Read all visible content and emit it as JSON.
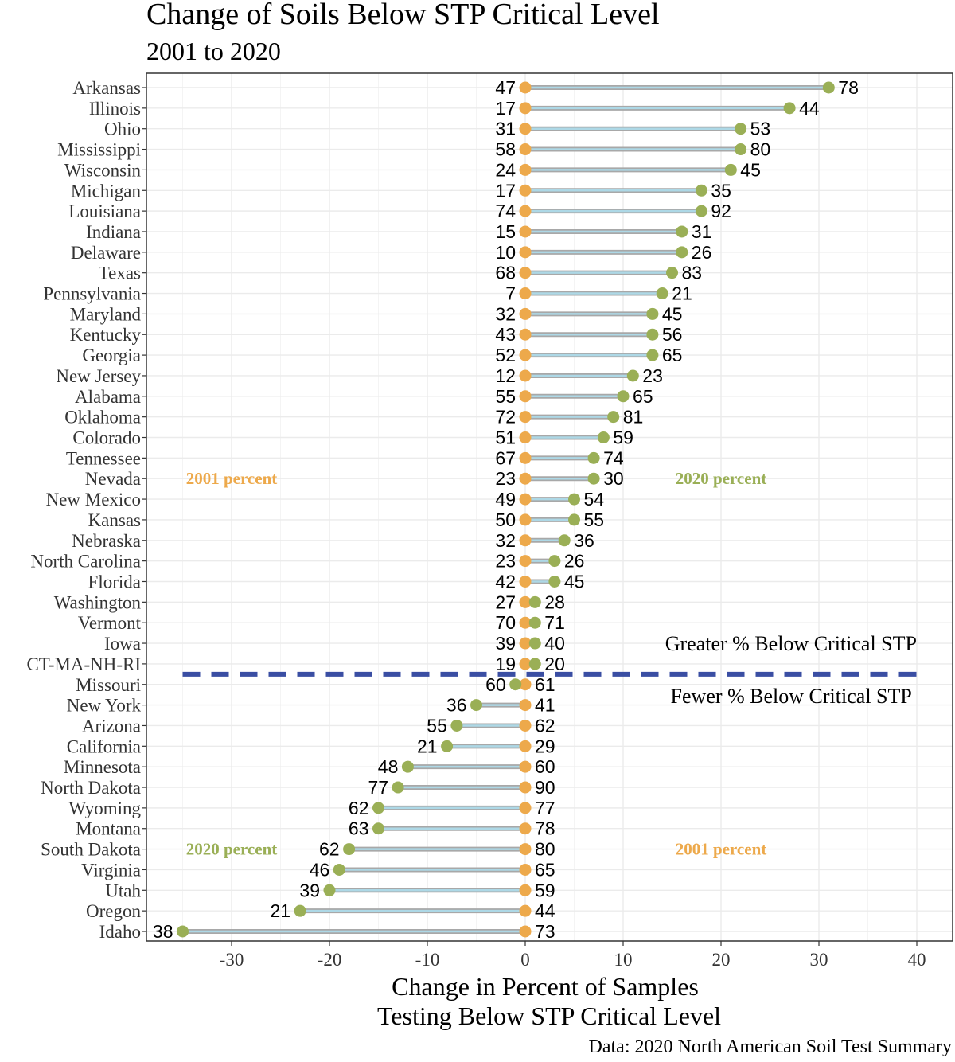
{
  "chart_data": {
    "type": "dumbbell",
    "title": "Change of Soils Below STP Critical Level",
    "subtitle": "2001 to 2020",
    "xlabel_lines": [
      "Change in Percent of Samples",
      "Testing Below STP Critical Level"
    ],
    "ylabel": "",
    "caption": "Data: 2020 North American Soil Test Summary",
    "xlim": [
      -38,
      43
    ],
    "xticks": [
      -30,
      -20,
      -10,
      0,
      10,
      20,
      30,
      40
    ],
    "grid": true,
    "colors": {
      "p2001": "#eda94b",
      "p2020": "#9aaf56",
      "segment_outer": "#a8a8a8",
      "segment_inner": "#add8e6",
      "divider": "#3a4ea3"
    },
    "annotations": {
      "top_left": {
        "text": "2001 percent",
        "color": "#eda94b",
        "x": -30
      },
      "top_right": {
        "text": "2020 percent",
        "color": "#9aaf56",
        "x": 20
      },
      "bottom_left": {
        "text": "2020 percent",
        "color": "#9aaf56",
        "x": -30
      },
      "bottom_right": {
        "text": "2001 percent",
        "color": "#eda94b",
        "x": 20
      },
      "greater": "Greater % Below Critical STP",
      "fewer": "Fewer % Below Critical STP"
    },
    "series_names": [
      "2001 percent",
      "2020 percent"
    ],
    "rows": [
      {
        "state": "Arkansas",
        "p2001": 47,
        "p2020": 78
      },
      {
        "state": "Illinois",
        "p2001": 17,
        "p2020": 44
      },
      {
        "state": "Ohio",
        "p2001": 31,
        "p2020": 53
      },
      {
        "state": "Mississippi",
        "p2001": 58,
        "p2020": 80
      },
      {
        "state": "Wisconsin",
        "p2001": 24,
        "p2020": 45
      },
      {
        "state": "Michigan",
        "p2001": 17,
        "p2020": 35
      },
      {
        "state": "Louisiana",
        "p2001": 74,
        "p2020": 92
      },
      {
        "state": "Indiana",
        "p2001": 15,
        "p2020": 31
      },
      {
        "state": "Delaware",
        "p2001": 10,
        "p2020": 26
      },
      {
        "state": "Texas",
        "p2001": 68,
        "p2020": 83
      },
      {
        "state": "Pennsylvania",
        "p2001": 7,
        "p2020": 21
      },
      {
        "state": "Maryland",
        "p2001": 32,
        "p2020": 45
      },
      {
        "state": "Kentucky",
        "p2001": 43,
        "p2020": 56
      },
      {
        "state": "Georgia",
        "p2001": 52,
        "p2020": 65
      },
      {
        "state": "New Jersey",
        "p2001": 12,
        "p2020": 23
      },
      {
        "state": "Alabama",
        "p2001": 55,
        "p2020": 65
      },
      {
        "state": "Oklahoma",
        "p2001": 72,
        "p2020": 81
      },
      {
        "state": "Colorado",
        "p2001": 51,
        "p2020": 59
      },
      {
        "state": "Tennessee",
        "p2001": 67,
        "p2020": 74
      },
      {
        "state": "Nevada",
        "p2001": 23,
        "p2020": 30
      },
      {
        "state": "New Mexico",
        "p2001": 49,
        "p2020": 54
      },
      {
        "state": "Kansas",
        "p2001": 50,
        "p2020": 55
      },
      {
        "state": "Nebraska",
        "p2001": 32,
        "p2020": 36
      },
      {
        "state": "North Carolina",
        "p2001": 23,
        "p2020": 26
      },
      {
        "state": "Florida",
        "p2001": 42,
        "p2020": 45
      },
      {
        "state": "Washington",
        "p2001": 27,
        "p2020": 28
      },
      {
        "state": "Vermont",
        "p2001": 70,
        "p2020": 71
      },
      {
        "state": "Iowa",
        "p2001": 39,
        "p2020": 40
      },
      {
        "state": "CT-MA-NH-RI",
        "p2001": 19,
        "p2020": 20
      },
      {
        "state": "Missouri",
        "p2001": 61,
        "p2020": 60
      },
      {
        "state": "New York",
        "p2001": 41,
        "p2020": 36
      },
      {
        "state": "Arizona",
        "p2001": 62,
        "p2020": 55
      },
      {
        "state": "California",
        "p2001": 29,
        "p2020": 21
      },
      {
        "state": "Minnesota",
        "p2001": 60,
        "p2020": 48
      },
      {
        "state": "North Dakota",
        "p2001": 90,
        "p2020": 77
      },
      {
        "state": "Wyoming",
        "p2001": 77,
        "p2020": 62
      },
      {
        "state": "Montana",
        "p2001": 78,
        "p2020": 63
      },
      {
        "state": "South Dakota",
        "p2001": 80,
        "p2020": 62
      },
      {
        "state": "Virginia",
        "p2001": 65,
        "p2020": 46
      },
      {
        "state": "Utah",
        "p2001": 59,
        "p2020": 39
      },
      {
        "state": "Oregon",
        "p2001": 44,
        "p2020": 21
      },
      {
        "state": "Idaho",
        "p2001": 73,
        "p2020": 38
      }
    ]
  }
}
